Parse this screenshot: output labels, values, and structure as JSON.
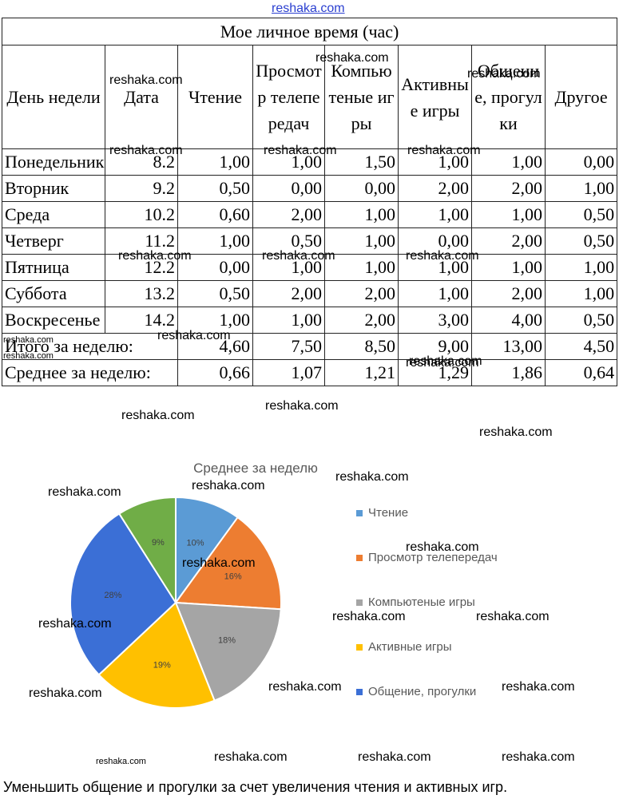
{
  "table": {
    "title": "Мое личное время (час)",
    "header": [
      "День недели",
      "Дата",
      "Чтение",
      "Просмотр телепередач",
      "Компьютеные игры",
      "Активные игры",
      "Общение, прогулки",
      "Другое"
    ],
    "rows": [
      [
        "Понедельник",
        "8.2",
        "1,00",
        "1,00",
        "1,50",
        "1,00",
        "1,00",
        "0,00"
      ],
      [
        "Вторник",
        "9.2",
        "0,50",
        "0,00",
        "0,00",
        "2,00",
        "2,00",
        "1,00"
      ],
      [
        "Среда",
        "10.2",
        "0,60",
        "2,00",
        "1,00",
        "1,00",
        "1,00",
        "0,50"
      ],
      [
        "Четверг",
        "11.2",
        "1,00",
        "0,50",
        "1,00",
        "0,00",
        "2,00",
        "0,50"
      ],
      [
        "Пятница",
        "12.2",
        "0,00",
        "1,00",
        "1,00",
        "1,00",
        "1,00",
        "1,00"
      ],
      [
        "Суббота",
        "13.2",
        "0,50",
        "2,00",
        "2,00",
        "1,00",
        "2,00",
        "1,00"
      ],
      [
        "Воскресенье",
        "14.2",
        "1,00",
        "1,00",
        "2,00",
        "3,00",
        "4,00",
        "0,50"
      ]
    ],
    "totals": [
      [
        "Итого за неделю:",
        "4,60",
        "7,50",
        "8,50",
        "9,00",
        "13,00",
        "4,50"
      ],
      [
        "Среднее за неделю:",
        "0,66",
        "1,07",
        "1,21",
        "1,29",
        "1,86",
        "0,64"
      ]
    ]
  },
  "chart_data": {
    "type": "pie",
    "title": "Среднее за неделю",
    "categories": [
      "Чтение",
      "Просмотр телепередач",
      "Компьютеные игры",
      "Активные игры",
      "Общение, прогулки",
      null
    ],
    "values": [
      10,
      16,
      18,
      19,
      28,
      9
    ],
    "value_labels": [
      "10%",
      "16%",
      "18%",
      "19%",
      "28%",
      "9%"
    ],
    "colors": [
      "#5b9bd5",
      "#ed7d31",
      "#a5a5a5",
      "#ffc000",
      "#3b6fd6",
      "#70ad47"
    ]
  },
  "conclusion": "Уменьшить общение и прогулки за счет увеличения чтения и активных игр.",
  "watermarks": [
    "reshaka.com",
    "reshaka.com",
    "reshaka.com",
    "reshaka.com",
    "reshaka.com",
    "reshaka.com",
    "reshaka.com",
    "reshaka.com",
    "reshaka.com",
    "reshaka.com",
    "reshaka.com",
    "reshaka.com",
    "reshaka.com",
    "reshaka.com",
    "reshaka.com",
    "reshaka.com",
    "reshaka.com",
    "reshaka.com",
    "reshaka.com",
    "reshaka.com",
    "reshaka.com",
    "reshaka.com",
    "reshaka.com",
    "reshaka.com",
    "reshaka.com",
    "reshaka.com",
    "reshaka.com",
    "reshaka.com",
    "reshaka.com",
    "reshaka.com",
    "reshaka.com",
    "reshaka.com",
    "reshaka.com"
  ]
}
